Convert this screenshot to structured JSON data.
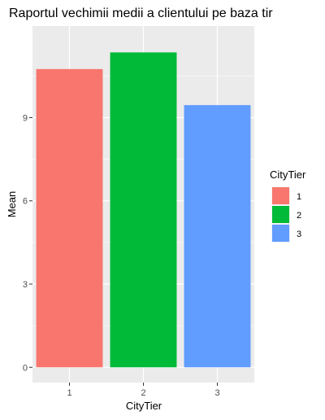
{
  "chart_data": {
    "type": "bar",
    "title": "Raportul vechimii medii a clientului pe baza tir",
    "xlabel": "CityTier",
    "ylabel": "Mean",
    "categories": [
      "1",
      "2",
      "3"
    ],
    "values": [
      10.75,
      11.35,
      9.45
    ],
    "colors": [
      "#F8766D",
      "#00BA38",
      "#619CFF"
    ],
    "ylim": [
      -0.55,
      12.3
    ],
    "yticks": [
      0,
      3,
      6,
      9
    ],
    "grid": true,
    "panel_background": "#EBEBEB",
    "legend": {
      "title": "CityTier",
      "entries": [
        "1",
        "2",
        "3"
      ],
      "placement": "right"
    }
  }
}
